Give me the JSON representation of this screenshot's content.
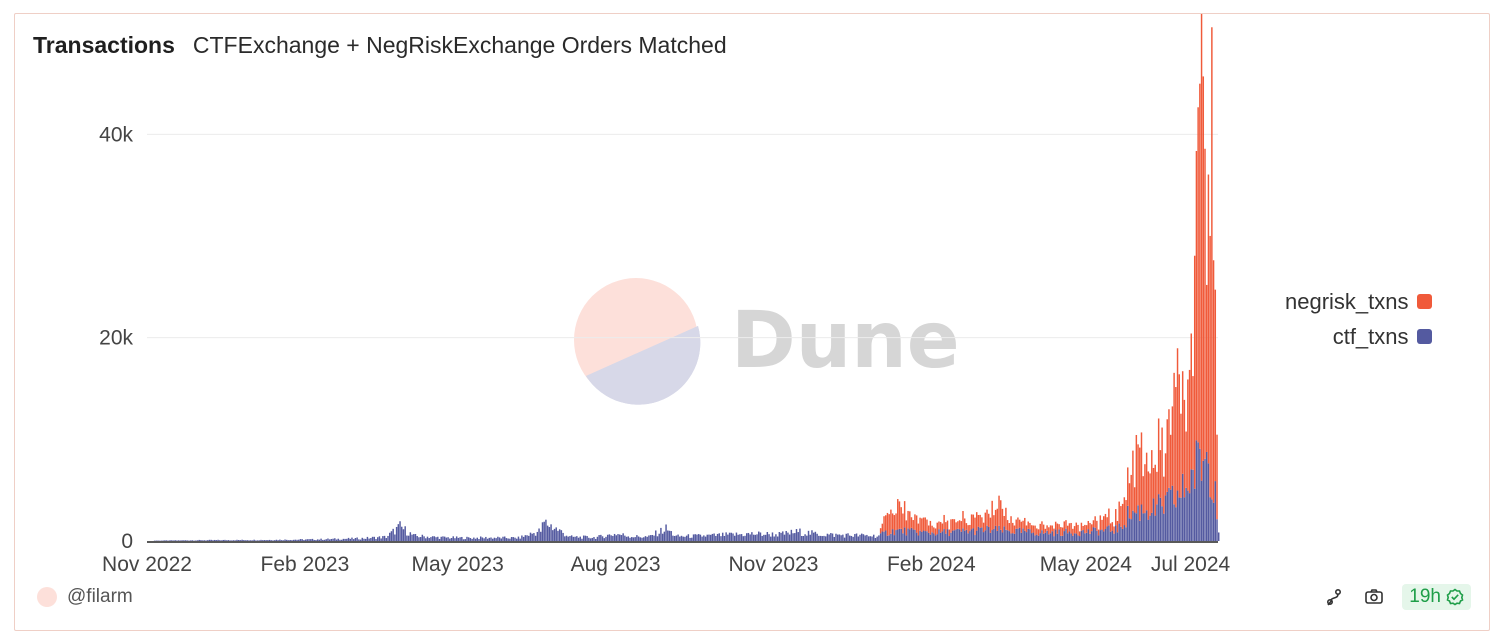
{
  "header": {
    "title": "Transactions",
    "subtitle": "CTFExchange + NegRiskExchange Orders Matched"
  },
  "watermark": {
    "text": "Dune"
  },
  "legend": [
    {
      "label": "negrisk_txns",
      "color": "#f05a3a"
    },
    {
      "label": "ctf_txns",
      "color": "#545aa0"
    }
  ],
  "footer": {
    "author": "@filarm",
    "freshness": "19h",
    "icons": [
      "fork-icon",
      "camera-icon",
      "check-circle-icon"
    ]
  },
  "chart_data": {
    "type": "bar",
    "stacked": true,
    "xlabel": "",
    "ylabel": "",
    "ylim": [
      0,
      42000
    ],
    "y_ticks": [
      0,
      20000,
      40000
    ],
    "y_tick_labels": [
      "0",
      "20k",
      "40k"
    ],
    "x_range": [
      "2022-11-01",
      "2024-07-17"
    ],
    "x_ticks": [
      "2022-11-01",
      "2023-02-01",
      "2023-05-01",
      "2023-08-01",
      "2023-11-01",
      "2024-02-01",
      "2024-05-01",
      "2024-07-01"
    ],
    "x_tick_labels": [
      "Nov 2022",
      "Feb 2023",
      "May 2023",
      "Aug 2023",
      "Nov 2023",
      "Feb 2024",
      "May 2024",
      "Jul 2024"
    ],
    "grid": true,
    "legend_position": "right",
    "series": [
      {
        "name": "ctf_txns",
        "color": "#545aa0",
        "points": [
          [
            "2022-11-05",
            40
          ],
          [
            "2022-11-20",
            60
          ],
          [
            "2022-12-05",
            80
          ],
          [
            "2022-12-20",
            90
          ],
          [
            "2023-01-05",
            100
          ],
          [
            "2023-01-20",
            120
          ],
          [
            "2023-02-05",
            150
          ],
          [
            "2023-02-20",
            200
          ],
          [
            "2023-03-05",
            250
          ],
          [
            "2023-03-20",
            400
          ],
          [
            "2023-03-28",
            1400
          ],
          [
            "2023-04-05",
            500
          ],
          [
            "2023-04-20",
            350
          ],
          [
            "2023-05-05",
            300
          ],
          [
            "2023-05-20",
            320
          ],
          [
            "2023-06-05",
            300
          ],
          [
            "2023-06-18",
            1000
          ],
          [
            "2023-06-20",
            1800
          ],
          [
            "2023-06-23",
            1600
          ],
          [
            "2023-07-05",
            400
          ],
          [
            "2023-07-20",
            350
          ],
          [
            "2023-08-01",
            700
          ],
          [
            "2023-08-10",
            450
          ],
          [
            "2023-08-20",
            400
          ],
          [
            "2023-08-30",
            1200
          ],
          [
            "2023-09-05",
            450
          ],
          [
            "2023-09-20",
            500
          ],
          [
            "2023-10-05",
            600
          ],
          [
            "2023-10-20",
            700
          ],
          [
            "2023-11-05",
            650
          ],
          [
            "2023-11-15",
            900
          ],
          [
            "2023-11-25",
            700
          ],
          [
            "2023-12-05",
            600
          ],
          [
            "2023-12-20",
            550
          ],
          [
            "2024-01-01",
            500
          ],
          [
            "2024-01-05",
            800
          ],
          [
            "2024-01-10",
            1000
          ],
          [
            "2024-01-15",
            1000
          ],
          [
            "2024-01-20",
            900
          ],
          [
            "2024-02-01",
            800
          ],
          [
            "2024-02-15",
            900
          ],
          [
            "2024-02-25",
            1000
          ],
          [
            "2024-03-05",
            1100
          ],
          [
            "2024-03-15",
            1000
          ],
          [
            "2024-03-25",
            900
          ],
          [
            "2024-04-05",
            800
          ],
          [
            "2024-04-20",
            850
          ],
          [
            "2024-05-01",
            900
          ],
          [
            "2024-05-10",
            1000
          ],
          [
            "2024-05-20",
            1200
          ],
          [
            "2024-05-25",
            2500
          ],
          [
            "2024-06-01",
            3000
          ],
          [
            "2024-06-05",
            3200
          ],
          [
            "2024-06-10",
            3000
          ],
          [
            "2024-06-15",
            3500
          ],
          [
            "2024-06-20",
            4000
          ],
          [
            "2024-06-25",
            4500
          ],
          [
            "2024-06-30",
            6000
          ],
          [
            "2024-07-05",
            7500
          ],
          [
            "2024-07-10",
            8500
          ],
          [
            "2024-07-15",
            6000
          ],
          [
            "2024-07-17",
            1000
          ]
        ]
      },
      {
        "name": "negrisk_txns",
        "color": "#f05a3a",
        "points": [
          [
            "2024-01-01",
            0
          ],
          [
            "2024-01-05",
            1500
          ],
          [
            "2024-01-10",
            2500
          ],
          [
            "2024-01-15",
            1800
          ],
          [
            "2024-01-20",
            1400
          ],
          [
            "2024-02-01",
            900
          ],
          [
            "2024-02-15",
            1100
          ],
          [
            "2024-02-25",
            1200
          ],
          [
            "2024-03-05",
            1500
          ],
          [
            "2024-03-12",
            3000
          ],
          [
            "2024-03-15",
            1500
          ],
          [
            "2024-03-25",
            1000
          ],
          [
            "2024-04-05",
            700
          ],
          [
            "2024-04-20",
            750
          ],
          [
            "2024-05-01",
            800
          ],
          [
            "2024-05-10",
            1000
          ],
          [
            "2024-05-20",
            1500
          ],
          [
            "2024-05-25",
            3000
          ],
          [
            "2024-06-01",
            6000
          ],
          [
            "2024-06-05",
            4000
          ],
          [
            "2024-06-10",
            5000
          ],
          [
            "2024-06-15",
            5500
          ],
          [
            "2024-06-20",
            6000
          ],
          [
            "2024-06-22",
            17000
          ],
          [
            "2024-06-25",
            6500
          ],
          [
            "2024-06-30",
            9000
          ],
          [
            "2024-07-02",
            15000
          ],
          [
            "2024-07-05",
            22000
          ],
          [
            "2024-07-07",
            34000
          ],
          [
            "2024-07-10",
            26000
          ],
          [
            "2024-07-13",
            32000
          ],
          [
            "2024-07-15",
            33000
          ],
          [
            "2024-07-17",
            0
          ]
        ]
      }
    ]
  }
}
